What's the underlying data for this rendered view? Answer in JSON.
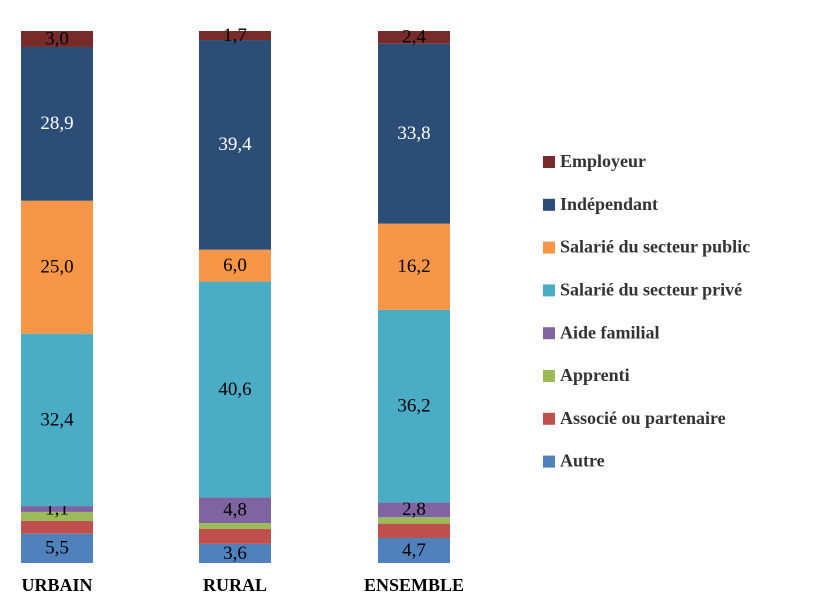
{
  "chart_data": {
    "type": "stacked_bar",
    "categories": [
      "URBAIN",
      "RURAL",
      "ENSEMBLE"
    ],
    "series": [
      {
        "name": "Autre",
        "color": "#4f81bd",
        "label_color": "#000000",
        "values": [
          5.5,
          3.6,
          4.7
        ],
        "value_labels": [
          "5,5",
          "3,6",
          "4,7"
        ]
      },
      {
        "name": "Associé ou partenaire",
        "color": "#c0504d",
        "label_color": "#000000",
        "values": [
          2.4,
          2.8,
          2.7
        ],
        "value_labels": [
          null,
          null,
          null
        ]
      },
      {
        "name": "Apprenti",
        "color": "#9bbb59",
        "label_color": "#000000",
        "values": [
          1.7,
          1.1,
          1.2
        ],
        "value_labels": [
          null,
          null,
          null
        ]
      },
      {
        "name": "Aide familial",
        "color": "#8064a2",
        "label_color": "#000000",
        "values": [
          1.1,
          4.8,
          2.8
        ],
        "value_labels": [
          "1,1",
          "4,8",
          "2,8"
        ]
      },
      {
        "name": "Salarié du secteur privé",
        "color": "#4bacc6",
        "label_color": "#000000",
        "values": [
          32.4,
          40.6,
          36.2
        ],
        "value_labels": [
          "32,4",
          "40,6",
          "36,2"
        ]
      },
      {
        "name": "Salarié du secteur public",
        "color": "#f79646",
        "label_color": "#000000",
        "values": [
          25.0,
          6.0,
          16.2
        ],
        "value_labels": [
          "25,0",
          "6,0",
          "16,2"
        ]
      },
      {
        "name": "Indépendant",
        "color": "#2c4d75",
        "label_color": "#ffffff",
        "values": [
          28.9,
          39.4,
          33.8
        ],
        "value_labels": [
          "28,9",
          "39,4",
          "33,8"
        ]
      },
      {
        "name": "Employeur",
        "color": "#772c2a",
        "label_color": "#000000",
        "values": [
          3.0,
          1.7,
          2.4
        ],
        "value_labels": [
          "3,0",
          "1,7",
          "2,4"
        ]
      }
    ]
  }
}
